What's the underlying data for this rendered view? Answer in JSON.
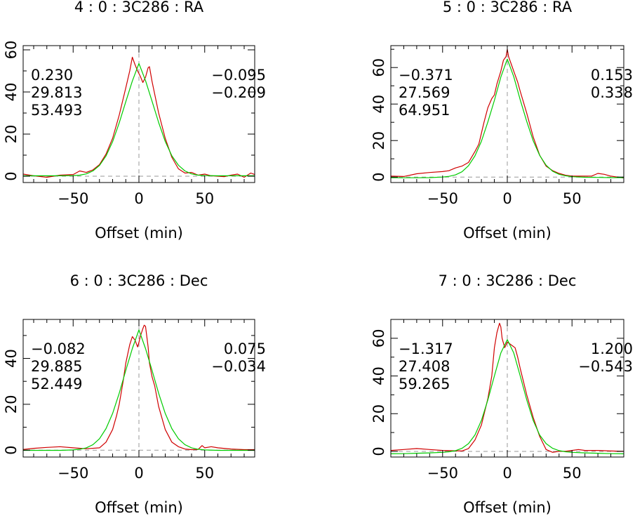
{
  "colors": {
    "data_series": "#d00000",
    "fit_series": "#00cc00",
    "reference_lines": "#999999",
    "frame": "#000000",
    "background": "#ffffff"
  },
  "chart_data": [
    {
      "type": "line",
      "title": "4 : 0 : 3C286 : RA",
      "xlabel": "Offset (min)",
      "ylabel": "",
      "xlim": [
        -88,
        88
      ],
      "ylim": [
        -3,
        62
      ],
      "xticks": [
        -50,
        0,
        50
      ],
      "yticks": [
        0,
        20,
        40,
        60
      ],
      "grid": false,
      "annotations_left": [
        "0.230",
        "29.813",
        "53.493"
      ],
      "annotations_right": [
        "−0.095",
        "−0.209"
      ],
      "series": [
        {
          "values_label": "data",
          "x": [
            -88,
            -80,
            -70,
            -60,
            -50,
            -45,
            -40,
            -35,
            -30,
            -25,
            -20,
            -15,
            -10,
            -7,
            -5,
            -3,
            -1,
            1,
            3,
            5,
            7,
            8,
            10,
            15,
            20,
            25,
            30,
            35,
            40,
            45,
            50,
            55,
            60,
            65,
            70,
            75,
            80,
            85,
            88
          ],
          "y": [
            1.0,
            0.2,
            -0.5,
            0.5,
            0.8,
            2.5,
            1.8,
            3.0,
            5.5,
            10.5,
            18.0,
            29.0,
            42.0,
            50.0,
            56.5,
            53.0,
            50.0,
            47.5,
            44.5,
            47.0,
            51.5,
            52.0,
            45.0,
            30.0,
            18.0,
            9.0,
            3.5,
            1.5,
            1.8,
            0.5,
            1.0,
            0.2,
            0.0,
            -0.2,
            0.5,
            1.0,
            -0.5,
            1.5,
            0.8
          ]
        },
        {
          "values_label": "fit",
          "x": [
            -88,
            -80,
            -70,
            -60,
            -50,
            -45,
            -40,
            -35,
            -30,
            -25,
            -20,
            -15,
            -10,
            -5,
            0,
            5,
            10,
            15,
            20,
            25,
            30,
            35,
            40,
            45,
            50,
            60,
            70,
            80,
            88
          ],
          "y": [
            0.2,
            0.2,
            0.2,
            0.2,
            0.3,
            0.5,
            1.1,
            2.5,
            5.1,
            9.6,
            16.4,
            25.3,
            35.4,
            45.2,
            53.5,
            45.4,
            35.6,
            25.5,
            16.5,
            9.7,
            5.2,
            2.5,
            1.1,
            0.5,
            0.3,
            0.2,
            0.2,
            0.2,
            0.2
          ]
        }
      ]
    },
    {
      "type": "line",
      "title": "5 : 0 : 3C286 : RA",
      "xlabel": "Offset (min)",
      "ylabel": "",
      "xlim": [
        -90,
        90
      ],
      "ylim": [
        -3,
        72
      ],
      "xticks": [
        -50,
        0,
        50
      ],
      "yticks": [
        0,
        20,
        40,
        60
      ],
      "grid": false,
      "annotations_left": [
        "−0.371",
        "27.569",
        "64.951"
      ],
      "annotations_right": [
        "0.153",
        "0.338"
      ],
      "series": [
        {
          "values_label": "data",
          "x": [
            -90,
            -80,
            -70,
            -60,
            -50,
            -45,
            -40,
            -35,
            -30,
            -25,
            -22,
            -20,
            -18,
            -15,
            -12,
            -10,
            -8,
            -5,
            -3,
            -1,
            0,
            1,
            3,
            5,
            8,
            10,
            15,
            20,
            25,
            30,
            35,
            40,
            45,
            50,
            55,
            60,
            65,
            70,
            75,
            80,
            85,
            90
          ],
          "y": [
            0.5,
            0.3,
            1.8,
            2.5,
            3.0,
            3.5,
            5.0,
            6.0,
            8.0,
            14.0,
            18.0,
            24.0,
            30.0,
            38.0,
            43.0,
            45.0,
            51.0,
            58.0,
            64.0,
            66.0,
            70.0,
            66.0,
            62.0,
            58.0,
            52.0,
            47.0,
            35.0,
            22.0,
            12.0,
            6.0,
            3.5,
            2.0,
            1.0,
            0.5,
            0.5,
            0.5,
            0.5,
            2.0,
            1.5,
            0.5,
            0.0,
            -0.5
          ]
        },
        {
          "values_label": "fit",
          "x": [
            -90,
            -80,
            -70,
            -60,
            -50,
            -45,
            -40,
            -35,
            -30,
            -25,
            -20,
            -15,
            -10,
            -5,
            0,
            5,
            10,
            15,
            20,
            25,
            30,
            35,
            40,
            45,
            50,
            60,
            70,
            80,
            90
          ],
          "y": [
            -0.4,
            -0.4,
            -0.4,
            -0.3,
            0.0,
            0.4,
            1.2,
            2.9,
            6.2,
            11.6,
            19.6,
            30.2,
            42.0,
            54.8,
            64.6,
            55.0,
            42.3,
            30.5,
            19.9,
            11.9,
            6.5,
            3.2,
            1.5,
            0.7,
            0.2,
            -0.1,
            -0.2,
            -0.3,
            -0.3
          ]
        }
      ]
    },
    {
      "type": "line",
      "title": "6 : 0 : 3C286 : Dec",
      "xlabel": "Offset (min)",
      "ylabel": "",
      "xlim": [
        -88,
        88
      ],
      "ylim": [
        -3,
        57
      ],
      "xticks": [
        -50,
        0,
        50
      ],
      "yticks": [
        0,
        20,
        40
      ],
      "grid": false,
      "annotations_left": [
        "−0.082",
        "29.885",
        "52.449"
      ],
      "annotations_right": [
        "0.075",
        "−0.034"
      ],
      "series": [
        {
          "values_label": "data",
          "x": [
            -88,
            -80,
            -70,
            -60,
            -50,
            -40,
            -30,
            -25,
            -20,
            -17,
            -15,
            -12,
            -10,
            -7,
            -5,
            -3,
            -1,
            0,
            1,
            3,
            4,
            5,
            7,
            8,
            10,
            12,
            15,
            20,
            25,
            30,
            35,
            40,
            45,
            48,
            50,
            55,
            60,
            70,
            80,
            88
          ],
          "y": [
            0.3,
            0.8,
            1.2,
            1.5,
            1.0,
            0.6,
            1.0,
            3.5,
            9.0,
            15.0,
            20.0,
            30.0,
            38.0,
            46.0,
            49.5,
            48.0,
            45.0,
            47.0,
            49.5,
            53.0,
            54.5,
            54.0,
            45.0,
            38.0,
            32.0,
            28.0,
            19.0,
            9.0,
            3.5,
            1.5,
            0.5,
            0.2,
            0.3,
            2.0,
            1.0,
            1.5,
            1.0,
            0.5,
            0.2,
            0.2
          ]
        },
        {
          "values_label": "fit",
          "x": [
            -88,
            -80,
            -70,
            -60,
            -50,
            -45,
            -40,
            -35,
            -30,
            -25,
            -20,
            -15,
            -10,
            -5,
            0,
            5,
            10,
            15,
            20,
            25,
            30,
            35,
            40,
            45,
            50,
            60,
            70,
            80,
            88
          ],
          "y": [
            -0.1,
            -0.1,
            -0.1,
            -0.1,
            0.1,
            0.4,
            1.0,
            2.4,
            5.0,
            9.4,
            16.0,
            24.8,
            34.8,
            44.3,
            52.4,
            44.3,
            34.8,
            24.8,
            16.0,
            9.4,
            5.0,
            2.4,
            1.0,
            0.4,
            0.1,
            -0.1,
            -0.1,
            -0.1,
            -0.1
          ]
        }
      ]
    },
    {
      "type": "line",
      "title": "7 : 0 : 3C286 : Dec",
      "xlabel": "Offset (min)",
      "ylabel": "",
      "xlim": [
        -90,
        90
      ],
      "ylim": [
        -3,
        70
      ],
      "xticks": [
        -50,
        0,
        50
      ],
      "yticks": [
        0,
        20,
        40,
        60
      ],
      "grid": false,
      "annotations_left": [
        "−1.317",
        "27.408",
        "59.265"
      ],
      "annotations_right": [
        "1.200",
        "−0.543"
      ],
      "series": [
        {
          "values_label": "data",
          "x": [
            -90,
            -80,
            -70,
            -60,
            -50,
            -40,
            -35,
            -30,
            -25,
            -20,
            -15,
            -12,
            -10,
            -8,
            -6,
            -5,
            -4,
            -2,
            0,
            2,
            4,
            6,
            8,
            10,
            15,
            20,
            25,
            30,
            35,
            40,
            45,
            50,
            55,
            60,
            70,
            80,
            90
          ],
          "y": [
            0.5,
            1.0,
            1.5,
            1.0,
            0.5,
            0.3,
            0.2,
            1.5,
            6.0,
            14.0,
            28.0,
            40.0,
            55.0,
            63.0,
            68.0,
            66.0,
            60.0,
            55.0,
            58.0,
            57.0,
            56.0,
            55.0,
            50.0,
            44.0,
            30.0,
            18.0,
            8.0,
            1.0,
            -0.5,
            0.0,
            0.0,
            0.5,
            1.0,
            0.5,
            0.5,
            0.2,
            0.0
          ]
        },
        {
          "values_label": "fit",
          "x": [
            -90,
            -80,
            -70,
            -60,
            -50,
            -45,
            -40,
            -35,
            -30,
            -25,
            -20,
            -15,
            -10,
            -5,
            0,
            5,
            10,
            15,
            20,
            25,
            30,
            35,
            40,
            45,
            50,
            60,
            70,
            80,
            90
          ],
          "y": [
            -1.3,
            -1.2,
            -1.0,
            -0.8,
            -0.5,
            -0.2,
            0.4,
            1.6,
            4.1,
            8.7,
            16.4,
            27.3,
            40.0,
            52.2,
            59.3,
            52.2,
            40.0,
            27.3,
            16.4,
            8.7,
            4.1,
            1.6,
            0.4,
            -0.2,
            -0.5,
            -0.8,
            -1.0,
            -1.2,
            -1.3
          ]
        }
      ]
    }
  ]
}
